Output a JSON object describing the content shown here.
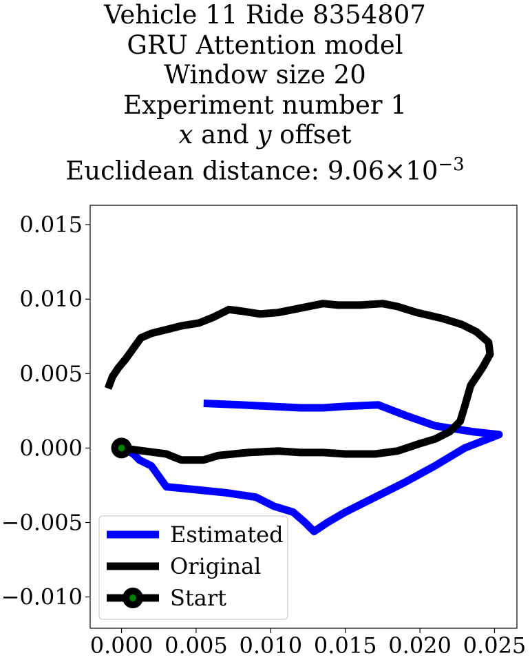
{
  "chart_data": {
    "type": "line",
    "title_lines": [
      "Vehicle 11 Ride 8354807",
      "GRU Attention model",
      "Window size 20",
      "Experiment number 1"
    ],
    "title_offset": {
      "x_var": "x",
      "and": " and ",
      "y_var": "y",
      "suffix": " offset"
    },
    "title_distance": {
      "prefix": "Euclidean distance: ",
      "mantissa": "9.06",
      "times": "×",
      "base": "10",
      "exponent": "−3"
    },
    "xlim": [
      -0.0021,
      0.0265
    ],
    "ylim": [
      -0.0121,
      0.0163
    ],
    "xticks": [
      0.0,
      0.005,
      0.01,
      0.015,
      0.02,
      0.025
    ],
    "xtick_labels": [
      "0.000",
      "0.005",
      "0.010",
      "0.015",
      "0.020",
      "0.025"
    ],
    "yticks": [
      -0.01,
      -0.005,
      0.0,
      0.005,
      0.01,
      0.015
    ],
    "ytick_labels": [
      "−0.010",
      "−0.005",
      "0.000",
      "0.005",
      "0.010",
      "0.015"
    ],
    "grid": false,
    "legend_position": "lower-left",
    "series": [
      {
        "name": "Estimated",
        "color": "#0000ff",
        "points": [
          [
            0.0,
            0.0
          ],
          [
            0.0008,
            -0.0004
          ],
          [
            0.0012,
            -0.0008
          ],
          [
            0.002,
            -0.0012
          ],
          [
            0.003,
            -0.0026
          ],
          [
            0.005,
            -0.0028
          ],
          [
            0.007,
            -0.003
          ],
          [
            0.009,
            -0.0033
          ],
          [
            0.0102,
            -0.0039
          ],
          [
            0.0115,
            -0.0043
          ],
          [
            0.0123,
            -0.005
          ],
          [
            0.0129,
            -0.0056
          ],
          [
            0.0138,
            -0.005
          ],
          [
            0.015,
            -0.0043
          ],
          [
            0.017,
            -0.0033
          ],
          [
            0.019,
            -0.0023
          ],
          [
            0.021,
            -0.0012
          ],
          [
            0.023,
            0.0
          ],
          [
            0.0253,
            0.0009
          ],
          [
            0.0235,
            0.0011
          ],
          [
            0.021,
            0.0015
          ],
          [
            0.019,
            0.0022
          ],
          [
            0.0172,
            0.0029
          ],
          [
            0.015,
            0.0028
          ],
          [
            0.0135,
            0.0027
          ],
          [
            0.012,
            0.0027
          ],
          [
            0.01,
            0.0028
          ],
          [
            0.008,
            0.0029
          ],
          [
            0.0055,
            0.003
          ]
        ]
      },
      {
        "name": "Original",
        "color": "#000000",
        "points": [
          [
            0.0,
            0.0
          ],
          [
            0.0015,
            -0.0002
          ],
          [
            0.003,
            -0.0004
          ],
          [
            0.0035,
            -0.0006
          ],
          [
            0.004,
            -0.0008
          ],
          [
            0.0055,
            -0.0008
          ],
          [
            0.0065,
            -0.0005
          ],
          [
            0.0085,
            -0.0003
          ],
          [
            0.0105,
            -0.0002
          ],
          [
            0.012,
            -0.0003
          ],
          [
            0.0135,
            -0.0003
          ],
          [
            0.015,
            -0.0004
          ],
          [
            0.017,
            -0.0004
          ],
          [
            0.0185,
            -0.0002
          ],
          [
            0.02,
            0.0003
          ],
          [
            0.021,
            0.0006
          ],
          [
            0.022,
            0.0011
          ],
          [
            0.0227,
            0.0018
          ],
          [
            0.023,
            0.0028
          ],
          [
            0.0234,
            0.0042
          ],
          [
            0.0242,
            0.0054
          ],
          [
            0.0247,
            0.0063
          ],
          [
            0.0246,
            0.0071
          ],
          [
            0.0238,
            0.0078
          ],
          [
            0.0228,
            0.0083
          ],
          [
            0.0215,
            0.0087
          ],
          [
            0.0198,
            0.0091
          ],
          [
            0.0185,
            0.0095
          ],
          [
            0.0175,
            0.0097
          ],
          [
            0.016,
            0.0096
          ],
          [
            0.0145,
            0.0096
          ],
          [
            0.0135,
            0.0097
          ],
          [
            0.012,
            0.0094
          ],
          [
            0.0105,
            0.0091
          ],
          [
            0.0093,
            0.009
          ],
          [
            0.008,
            0.0092
          ],
          [
            0.0072,
            0.0093
          ],
          [
            0.0062,
            0.0088
          ],
          [
            0.0052,
            0.0084
          ],
          [
            0.004,
            0.0082
          ],
          [
            0.002,
            0.0077
          ],
          [
            0.0013,
            0.0074
          ],
          [
            0.0008,
            0.0067
          ],
          [
            0.0003,
            0.006
          ],
          [
            -0.0002,
            0.0054
          ],
          [
            -0.0006,
            0.0048
          ],
          [
            -0.0009,
            0.004
          ]
        ]
      }
    ],
    "start_point": {
      "name": "Start",
      "x": 0.0,
      "y": 0.0,
      "outer_color": "#000000",
      "inner_color": "#008000"
    }
  }
}
